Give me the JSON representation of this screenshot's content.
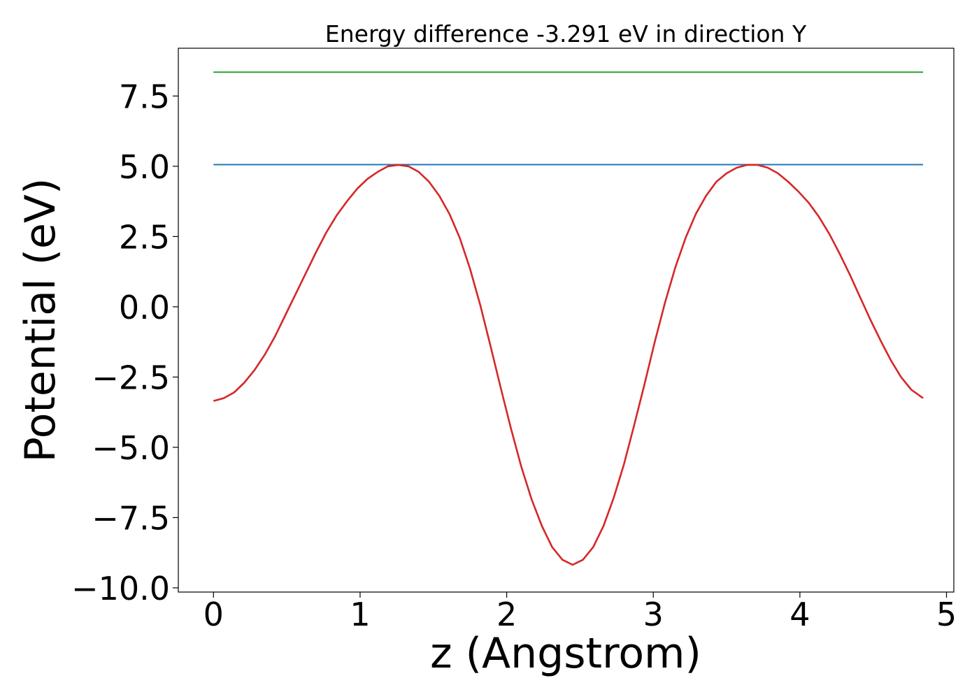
{
  "chart_data": {
    "type": "line",
    "title": "Energy difference -3.291 eV in direction Y",
    "xlabel": "z (Angstrom)",
    "ylabel": "Potential (eV)",
    "xlim": [
      -0.24,
      5.05
    ],
    "ylim": [
      -10.15,
      9.2
    ],
    "xticks": [
      0,
      1,
      2,
      3,
      4,
      5
    ],
    "xtick_labels": [
      "0",
      "1",
      "2",
      "3",
      "4",
      "5"
    ],
    "yticks": [
      7.5,
      5.0,
      2.5,
      0.0,
      -2.5,
      -5.0,
      -7.5,
      -10.0
    ],
    "ytick_labels": [
      "7.5",
      "5.0",
      "2.5",
      "0.0",
      "−2.5",
      "−5.0",
      "−7.5",
      "−10.0"
    ],
    "grid": false,
    "series": [
      {
        "color": "#2ca02c",
        "x": [
          0,
          4.84
        ],
        "y": [
          8.35,
          8.35
        ]
      },
      {
        "color": "#1f77b4",
        "x": [
          0,
          4.84
        ],
        "y": [
          5.06,
          5.06
        ]
      },
      {
        "color": "#d62728",
        "x": [
          0.0,
          0.07,
          0.14,
          0.21,
          0.28,
          0.35,
          0.42,
          0.49,
          0.56,
          0.63,
          0.7,
          0.77,
          0.84,
          0.91,
          0.98,
          1.05,
          1.12,
          1.19,
          1.26,
          1.33,
          1.4,
          1.47,
          1.54,
          1.61,
          1.68,
          1.75,
          1.82,
          1.89,
          1.96,
          2.03,
          2.1,
          2.17,
          2.24,
          2.31,
          2.38,
          2.45,
          2.52,
          2.59,
          2.66,
          2.73,
          2.8,
          2.87,
          2.94,
          3.01,
          3.08,
          3.15,
          3.22,
          3.29,
          3.36,
          3.43,
          3.5,
          3.57,
          3.64,
          3.71,
          3.78,
          3.85,
          3.92,
          3.99,
          4.06,
          4.13,
          4.2,
          4.27,
          4.34,
          4.41,
          4.48,
          4.55,
          4.62,
          4.69,
          4.76,
          4.84
        ],
        "y": [
          -3.35,
          -3.25,
          -3.05,
          -2.7,
          -2.25,
          -1.7,
          -1.05,
          -0.3,
          0.45,
          1.2,
          1.95,
          2.65,
          3.25,
          3.75,
          4.2,
          4.55,
          4.8,
          5.0,
          5.05,
          5.0,
          4.8,
          4.45,
          3.95,
          3.3,
          2.45,
          1.35,
          0.05,
          -1.4,
          -2.9,
          -4.35,
          -5.7,
          -6.85,
          -7.8,
          -8.55,
          -9.0,
          -9.18,
          -9.0,
          -8.55,
          -7.8,
          -6.8,
          -5.6,
          -4.2,
          -2.75,
          -1.25,
          0.15,
          1.4,
          2.45,
          3.3,
          3.95,
          4.45,
          4.75,
          4.95,
          5.05,
          5.05,
          4.95,
          4.75,
          4.45,
          4.1,
          3.7,
          3.2,
          2.6,
          1.9,
          1.15,
          0.35,
          -0.45,
          -1.2,
          -1.9,
          -2.5,
          -2.95,
          -3.25
        ]
      }
    ]
  }
}
